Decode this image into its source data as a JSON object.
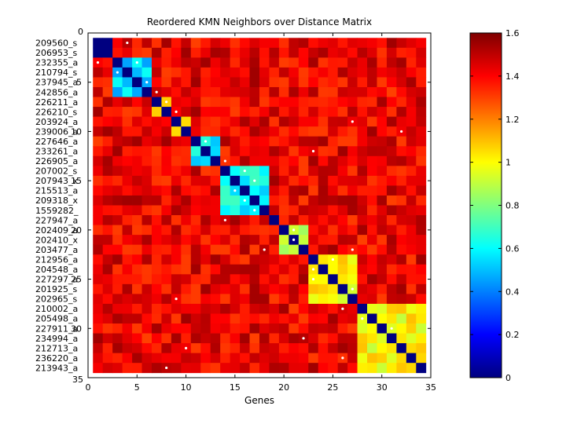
{
  "chart_data": {
    "type": "heatmap",
    "title": "Reordered KMN Neighbors over Distance Matrix",
    "xlabel": "Genes",
    "ylabel": "",
    "xlim": [
      0,
      35
    ],
    "ylim": [
      35,
      0
    ],
    "x_ticks": [
      0,
      5,
      10,
      15,
      20,
      25,
      30,
      35
    ],
    "y_ticks_right": [
      5,
      10,
      15,
      20,
      25,
      30
    ],
    "y_tick_top": 0,
    "y_tick_bottom": 35,
    "row_labels": [
      "209560_s",
      "206953_s",
      "232355_a",
      "210794_s",
      "237945_a",
      "242856_a",
      "226211_a",
      "226210_s",
      "203924_a",
      "239006_a",
      "227646_a",
      "233261_a",
      "226905_a",
      "207002_s",
      "207943_x",
      "215513_a",
      "209318_x",
      "1559282_",
      "227947_a",
      "202409_a",
      "202410_x",
      "203477_a",
      "212956_a",
      "204548_a",
      "227297_a",
      "201925_s",
      "202965_s",
      "210002_a",
      "205498_a",
      "227911_a",
      "234994_a",
      "212713_a",
      "236220_a",
      "213943_a"
    ],
    "colorbar": {
      "colormap": "jet",
      "range": [
        0,
        1.6
      ],
      "ticks": [
        0,
        0.2,
        0.4,
        0.6,
        0.8,
        1,
        1.2,
        1.4,
        1.6
      ]
    },
    "clusters": [
      {
        "rows": [
          1,
          2
        ],
        "value": 0.0
      },
      {
        "rows": [
          3,
          6
        ],
        "value": 0.55
      },
      {
        "rows": [
          7,
          8
        ],
        "value": 1.0
      },
      {
        "rows": [
          9,
          10
        ],
        "value": 1.15
      },
      {
        "rows": [
          11,
          13
        ],
        "value": 0.6
      },
      {
        "rows": [
          14,
          18
        ],
        "value": 0.6
      },
      {
        "rows": [
          19,
          19
        ],
        "value": 1.0
      },
      {
        "rows": [
          20,
          22
        ],
        "value": 0.9
      },
      {
        "rows": [
          23,
          27
        ],
        "value": 1.0
      },
      {
        "rows": [
          28,
          34
        ],
        "value": 1.0
      }
    ],
    "diagonal_value": 0.0,
    "background_value_range": [
      1.3,
      1.55
    ],
    "neighbor_markers": [
      [
        1,
        4
      ],
      [
        3,
        1
      ],
      [
        3,
        5
      ],
      [
        4,
        3
      ],
      [
        5,
        6
      ],
      [
        6,
        7
      ],
      [
        7,
        8
      ],
      [
        8,
        9
      ],
      [
        9,
        27
      ],
      [
        10,
        32
      ],
      [
        11,
        12
      ],
      [
        12,
        23
      ],
      [
        13,
        14
      ],
      [
        14,
        16
      ],
      [
        15,
        17
      ],
      [
        16,
        15
      ],
      [
        17,
        16
      ],
      [
        18,
        17
      ],
      [
        19,
        14
      ],
      [
        20,
        21
      ],
      [
        21,
        21
      ],
      [
        22,
        18
      ],
      [
        22,
        27
      ],
      [
        23,
        25
      ],
      [
        24,
        23
      ],
      [
        25,
        23
      ],
      [
        26,
        27
      ],
      [
        27,
        9
      ],
      [
        28,
        26
      ],
      [
        29,
        28
      ],
      [
        30,
        31
      ],
      [
        31,
        22
      ],
      [
        32,
        10
      ],
      [
        33,
        26
      ],
      [
        34,
        8
      ]
    ]
  }
}
